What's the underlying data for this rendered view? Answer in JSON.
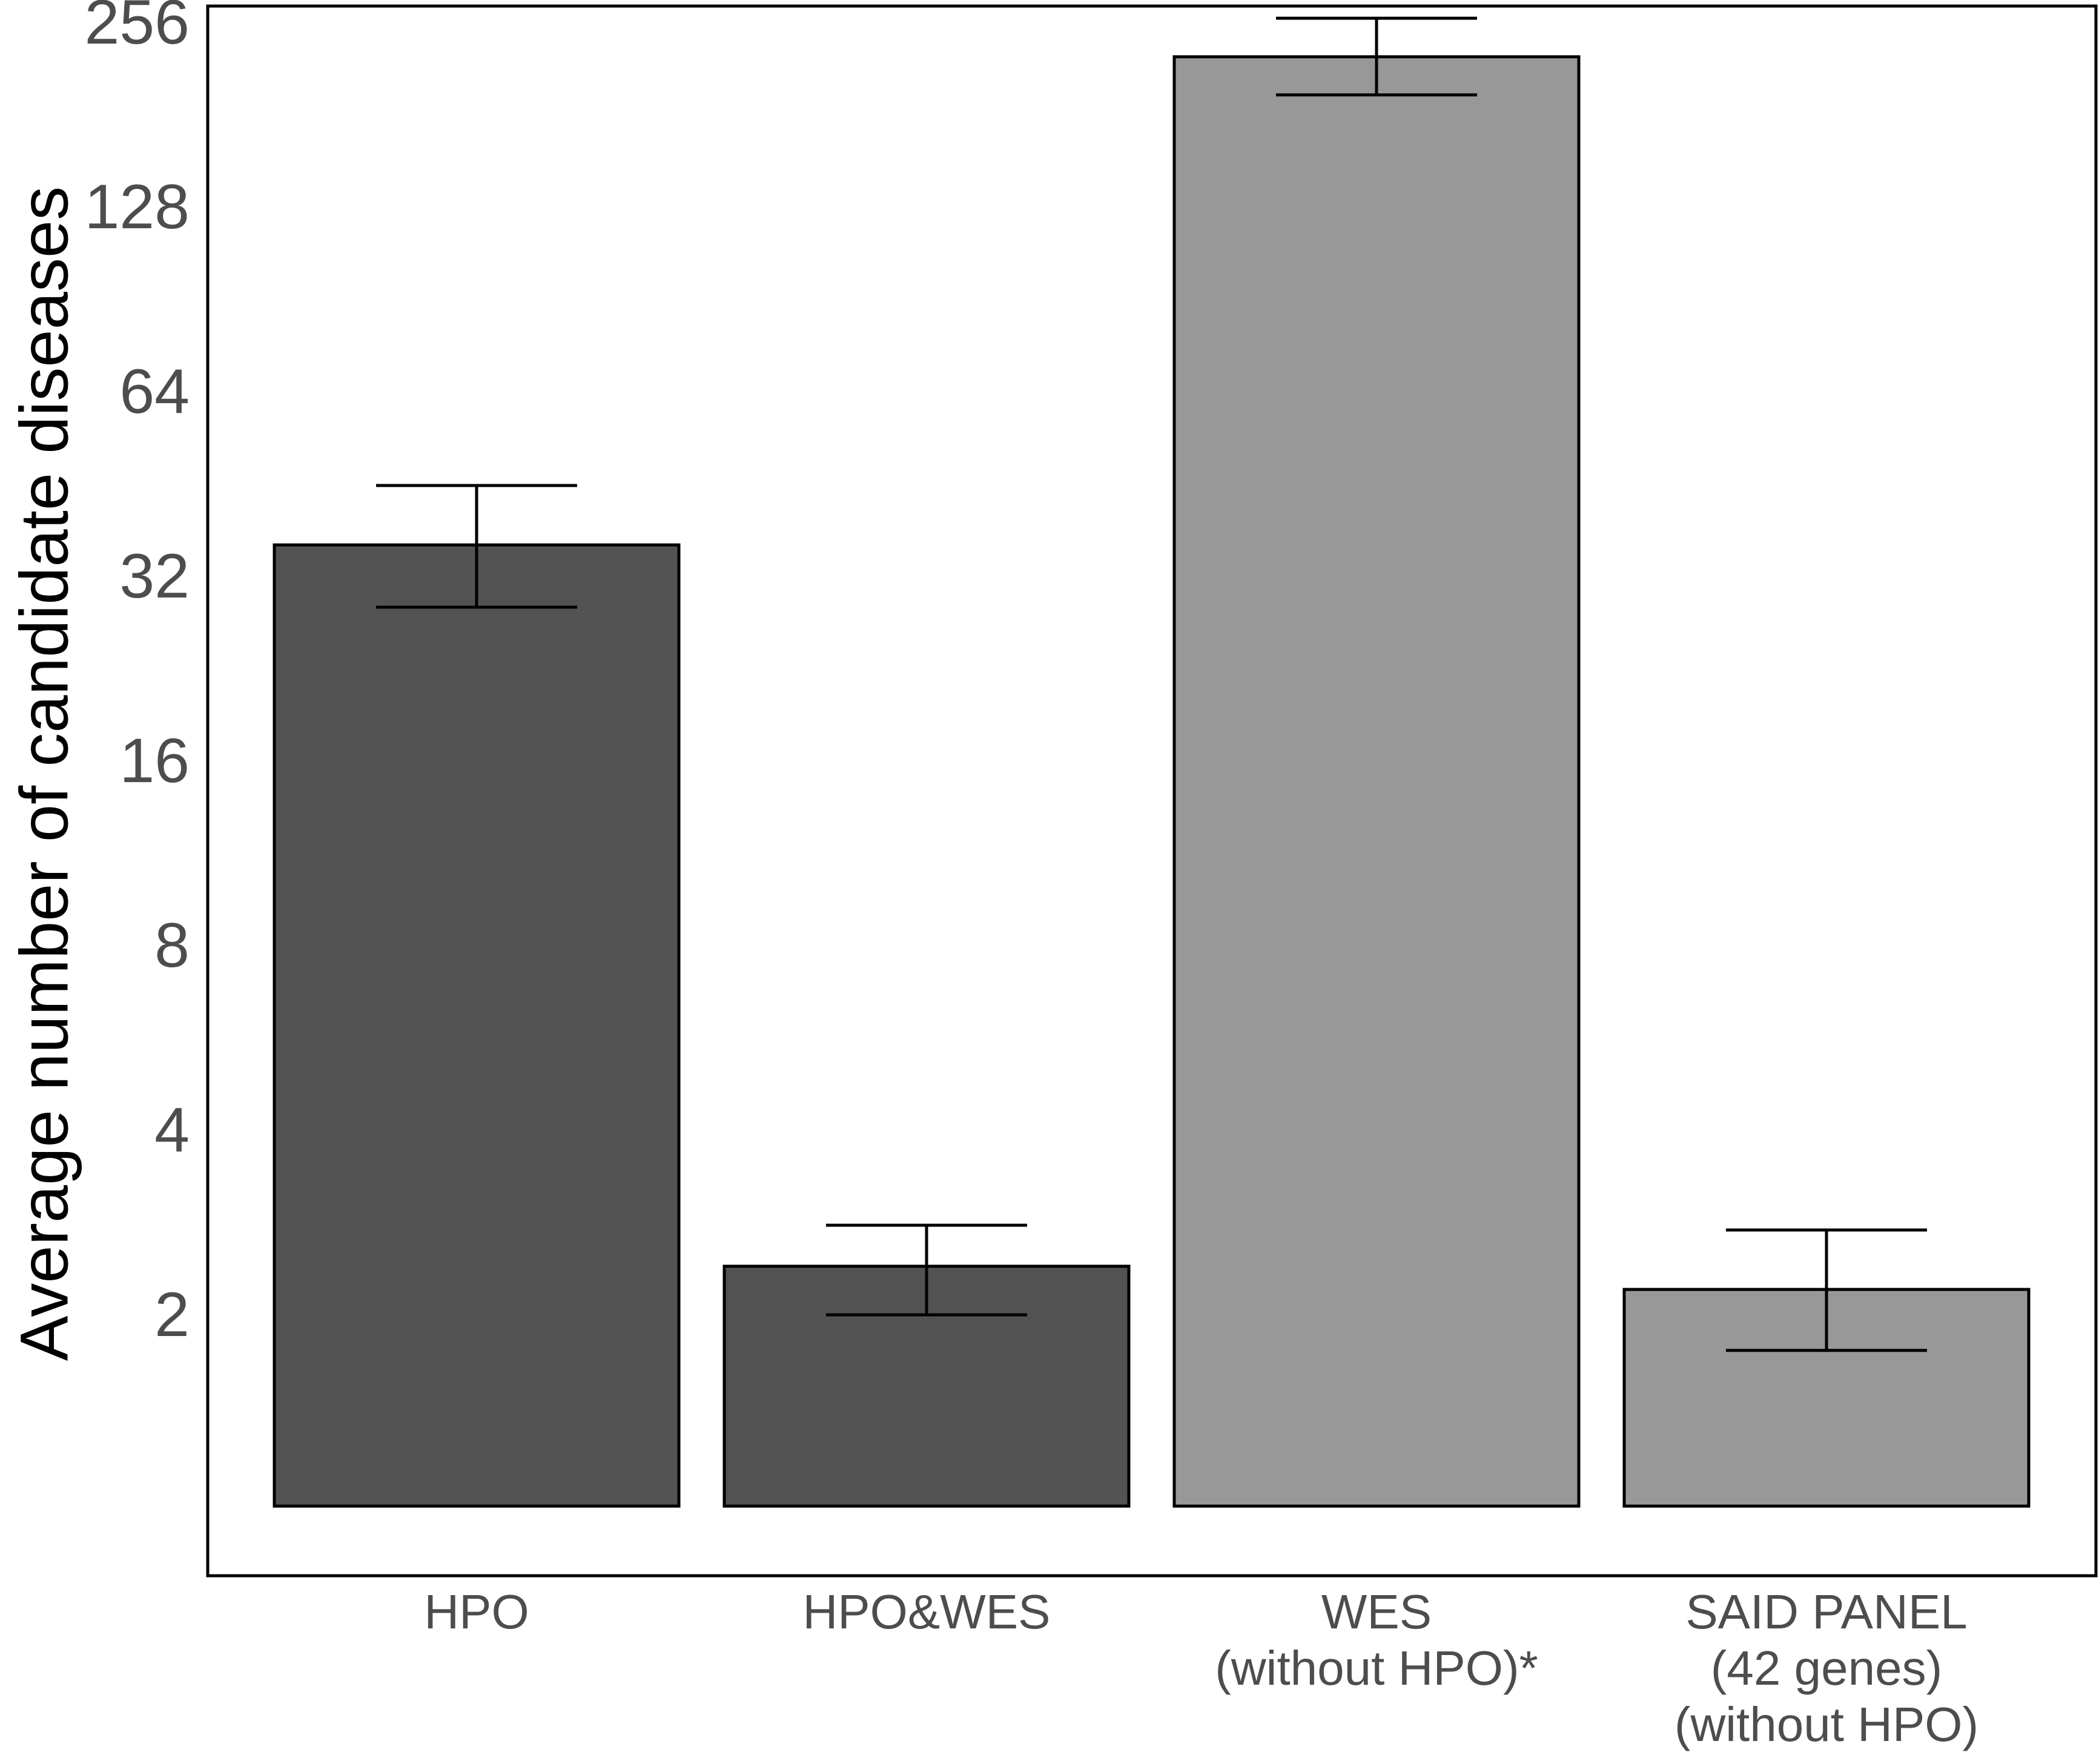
{
  "chart_data": {
    "type": "bar",
    "title": "",
    "xlabel": "",
    "ylabel": "Average number of candidate diseases",
    "y_scale": "log2",
    "ylim": [
      1,
      300
    ],
    "y_ticks": [
      2,
      4,
      8,
      16,
      32,
      64,
      128,
      256
    ],
    "y_tick_labels": [
      "2",
      "4",
      "8",
      "16",
      "32",
      "64",
      "128",
      "256"
    ],
    "grid": false,
    "legend": "none",
    "categories": [
      [
        "HPO"
      ],
      [
        "HPO&WES"
      ],
      [
        "WES",
        "(without HPO)*"
      ],
      [
        "SAID PANEL",
        "(42 genes)",
        "(without HPO)"
      ]
    ],
    "values": [
      36,
      2.4,
      225,
      2.2
    ],
    "error_low": [
      28.5,
      2.0,
      195,
      1.75
    ],
    "error_high": [
      45,
      2.8,
      260,
      2.75
    ],
    "bar_colors": [
      "#535353",
      "#535353",
      "#989898",
      "#989898"
    ],
    "colors": {
      "dark_bar": "#535353",
      "light_bar": "#989898",
      "outline": "#000000",
      "tick_text": "#4d4d4d"
    }
  }
}
